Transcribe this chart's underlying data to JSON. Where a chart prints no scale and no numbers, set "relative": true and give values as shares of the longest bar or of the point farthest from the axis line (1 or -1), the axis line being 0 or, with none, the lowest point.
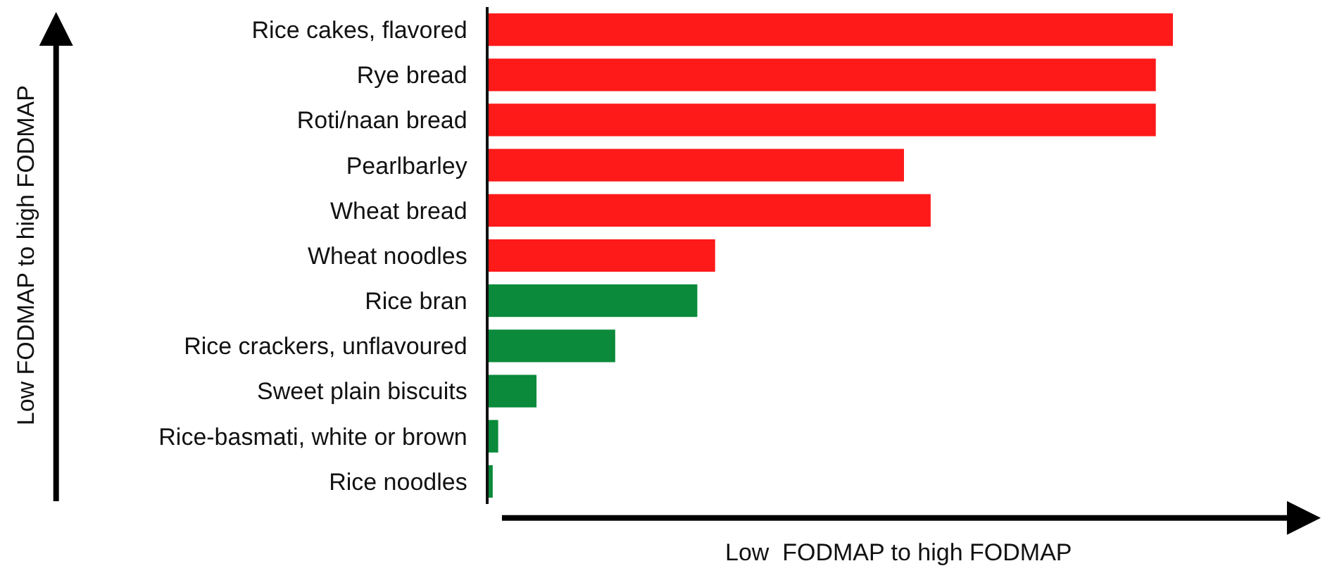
{
  "chart_data": {
    "type": "bar",
    "orientation": "horizontal",
    "relative": true,
    "categories": [
      "Rice cakes, flavored",
      "Rye bread",
      "Roti/naan bread",
      "Pearlbarley",
      "Wheat bread",
      "Wheat noodles",
      "Rice bran",
      "Rice crackers, unflavoured",
      "Sweet plain biscuits",
      "Rice-basmati, white or brown",
      "Rice noodles"
    ],
    "values": [
      1,
      0.975,
      0.975,
      0.607,
      0.646,
      0.331,
      0.305,
      0.185,
      0.07,
      0.014,
      0.006
    ],
    "colors": [
      "#ff1a1a",
      "#ff1a1a",
      "#ff1a1a",
      "#ff1a1a",
      "#ff1a1a",
      "#ff1a1a",
      "#0a8a3a",
      "#0a8a3a",
      "#0a8a3a",
      "#0a8a3a",
      "#0a8a3a"
    ],
    "xlabel": "Low  FODMAP to high FODMAP",
    "ylabel": "Low FODMAP to high FODMAP"
  }
}
